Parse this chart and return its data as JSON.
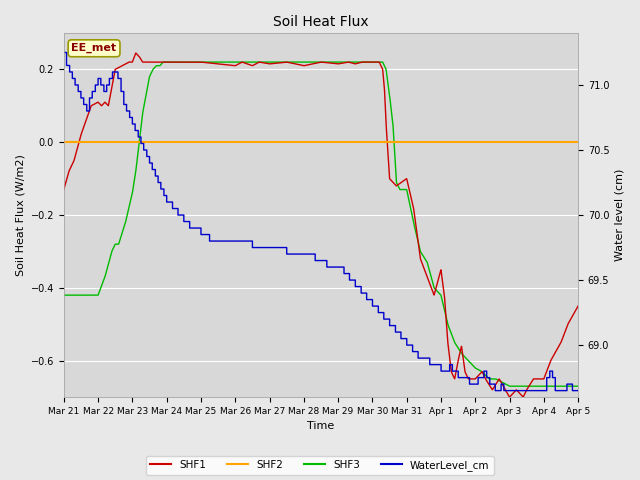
{
  "title": "Soil Heat Flux",
  "ylabel_left": "Soil Heat Flux (W/m2)",
  "ylabel_right": "Water level (cm)",
  "xlabel": "Time",
  "ylim_left": [
    -0.7,
    0.3
  ],
  "ylim_right": [
    68.6,
    71.4
  ],
  "background_color": "#e8e8e8",
  "plot_bg_color": "#d8d8d8",
  "grid_color": "#ffffff",
  "annotation_text": "EE_met",
  "annotation_bg": "#ffffcc",
  "annotation_border": "#999900",
  "legend_entries": [
    "SHF1",
    "SHF2",
    "SHF3",
    "WaterLevel_cm"
  ],
  "colors": {
    "SHF1": "#cc0000",
    "SHF2": "#ffa500",
    "SHF3": "#00bb00",
    "WaterLevel_cm": "#0000cc"
  },
  "x_tick_labels": [
    "Mar 21",
    "Mar 22",
    "Mar 23",
    "Mar 24",
    "Mar 25",
    "Mar 26",
    "Mar 27",
    "Mar 28",
    "Mar 29",
    "Mar 30",
    "Mar 31",
    "Apr 1",
    "Apr 2",
    "Apr 3",
    "Apr 4",
    "Apr 5"
  ],
  "x_tick_positions": [
    0,
    1,
    2,
    3,
    4,
    5,
    6,
    7,
    8,
    9,
    10,
    11,
    12,
    13,
    14,
    15
  ],
  "figsize": [
    6.4,
    4.8
  ],
  "dpi": 100
}
